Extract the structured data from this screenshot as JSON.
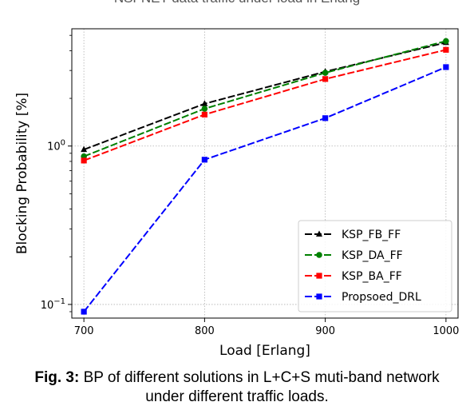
{
  "header_text": "NSFNET data traffic under load in Erlang",
  "caption": {
    "label": "Fig. 3:",
    "line1": "BP of different solutions in L+C+S muti-band network",
    "line2": "under different traffic loads."
  },
  "chart_data": {
    "type": "line",
    "title": "",
    "xlabel": "Load [Erlang]",
    "ylabel": "Blocking Probability [%]",
    "x": [
      700,
      800,
      900,
      1000
    ],
    "xticks": [
      "700",
      "800",
      "900",
      "1000"
    ],
    "yscale": "log",
    "ylim": [
      0.082,
      5.5
    ],
    "xlim": [
      690,
      1010
    ],
    "grid": true,
    "legend_position": "lower right",
    "series": [
      {
        "name": "KSP_FB_FF",
        "values": [
          0.95,
          1.85,
          2.95,
          4.5
        ],
        "color": "#000000",
        "marker": "triangle"
      },
      {
        "name": "KSP_DA_FF",
        "values": [
          0.86,
          1.72,
          2.9,
          4.6
        ],
        "color": "#008000",
        "marker": "circle"
      },
      {
        "name": "KSP_BA_FF",
        "values": [
          0.81,
          1.58,
          2.65,
          4.05
        ],
        "color": "#ff0000",
        "marker": "square"
      },
      {
        "name": "Propsoed_DRL",
        "values": [
          0.09,
          0.82,
          1.5,
          3.15
        ],
        "color": "#0000ff",
        "marker": "square"
      }
    ]
  }
}
